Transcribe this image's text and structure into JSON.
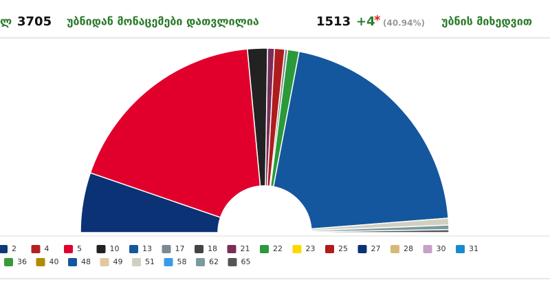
{
  "header": {
    "prefix": "ლ",
    "total": "3705",
    "counted_label": "უბნიდან მონაცემები დათვლილია",
    "counted": "1513",
    "extra": "+4",
    "extra_mark": "*",
    "percent": "(40.94%)",
    "by_precinct": "უბნის მიხედვით"
  },
  "chart_data": {
    "type": "half-donut",
    "series": [
      {
        "name": "27",
        "color": "#0b3274",
        "values": [
          10.5
        ]
      },
      {
        "name": "5",
        "color": "#e1002c",
        "values": [
          36.5
        ]
      },
      {
        "name": "10",
        "color": "#222222",
        "values": [
          3.5
        ]
      },
      {
        "name": "21",
        "color": "#7a2d5a",
        "values": [
          1.2
        ]
      },
      {
        "name": "25",
        "color": "#b01c1c",
        "values": [
          1.8
        ]
      },
      {
        "name": "17",
        "color": "#7a8a90",
        "values": [
          0.5
        ]
      },
      {
        "name": "22",
        "color": "#2a9a3a",
        "values": [
          2
        ]
      },
      {
        "name": "13",
        "color": "#15579e",
        "values": [
          41.5
        ]
      },
      {
        "name": "51",
        "color": "#d0d0c0",
        "values": [
          1.2
        ]
      },
      {
        "name": "62",
        "color": "#7a9aa0",
        "values": [
          0.8
        ]
      },
      {
        "name": "65",
        "color": "#555555",
        "values": [
          0.5
        ]
      }
    ],
    "legend": [
      {
        "label": "2",
        "color": "#0d3a78"
      },
      {
        "label": "4",
        "color": "#b22222"
      },
      {
        "label": "5",
        "color": "#e1002c"
      },
      {
        "label": "10",
        "color": "#222222"
      },
      {
        "label": "13",
        "color": "#15579e"
      },
      {
        "label": "17",
        "color": "#7a8a90"
      },
      {
        "label": "18",
        "color": "#444444"
      },
      {
        "label": "21",
        "color": "#7a2d5a"
      },
      {
        "label": "22",
        "color": "#2a9a3a"
      },
      {
        "label": "23",
        "color": "#ffd700"
      },
      {
        "label": "25",
        "color": "#b01c1c"
      },
      {
        "label": "27",
        "color": "#0b3274"
      },
      {
        "label": "28",
        "color": "#d8b878"
      },
      {
        "label": "30",
        "color": "#c8a0c8"
      },
      {
        "label": "31",
        "color": "#1a8ad0"
      },
      {
        "label": "36",
        "color": "#3a9a3a"
      },
      {
        "label": "40",
        "color": "#b08a00"
      },
      {
        "label": "48",
        "color": "#15579e"
      },
      {
        "label": "49",
        "color": "#e0c8a0"
      },
      {
        "label": "51",
        "color": "#d0d0c0"
      },
      {
        "label": "58",
        "color": "#3a9ae8"
      },
      {
        "label": "62",
        "color": "#7a9aa0"
      },
      {
        "label": "65",
        "color": "#555555"
      }
    ]
  }
}
